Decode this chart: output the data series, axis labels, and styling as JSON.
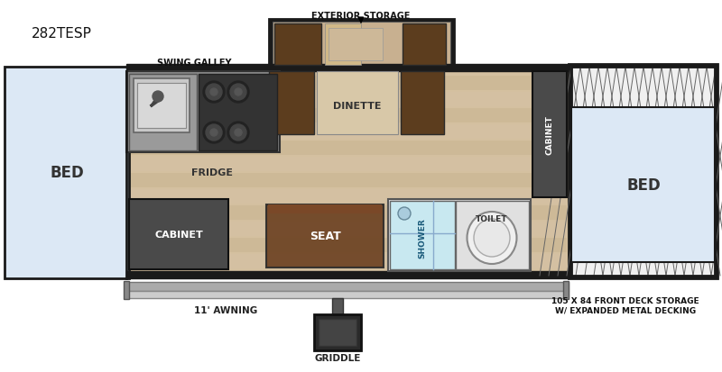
{
  "bg_color": "#ffffff",
  "floor_color": "#d4c0a0",
  "bed_color": "#dce8f5",
  "brown_dark": "#5c3d1e",
  "brown_seat": "#6b4020",
  "cabinet_dark": "#4a4a4a",
  "galley_bg": "#777777",
  "sink_bg": "#b0b0b0",
  "stove_bg": "#333333",
  "shower_color": "#c8e8f0",
  "hatch_bg": "#f5f5f5",
  "awning_color": "#c0c0c0",
  "griddle_color": "#2a2a2a",
  "wall_color": "#1a1a1a",
  "labels": {
    "model": "282TESP",
    "ext_storage": "EXTERIOR STORAGE",
    "swing_galley": "SWING GALLEY",
    "dinette": "DINETTE",
    "cabinet_right": "CABINET",
    "cabinet_left": "CABINET",
    "fridge": "FRIDGE",
    "bed_left": "BED",
    "bed_right": "BED",
    "seat": "SEAT",
    "shower": "SHOWER",
    "toilet": "TOILET",
    "awning": "11' AWNING",
    "griddle": "GRIDDLE",
    "deck": "105 X 84 FRONT DECK STORAGE\nW/ EXPANDED METAL DECKING"
  }
}
